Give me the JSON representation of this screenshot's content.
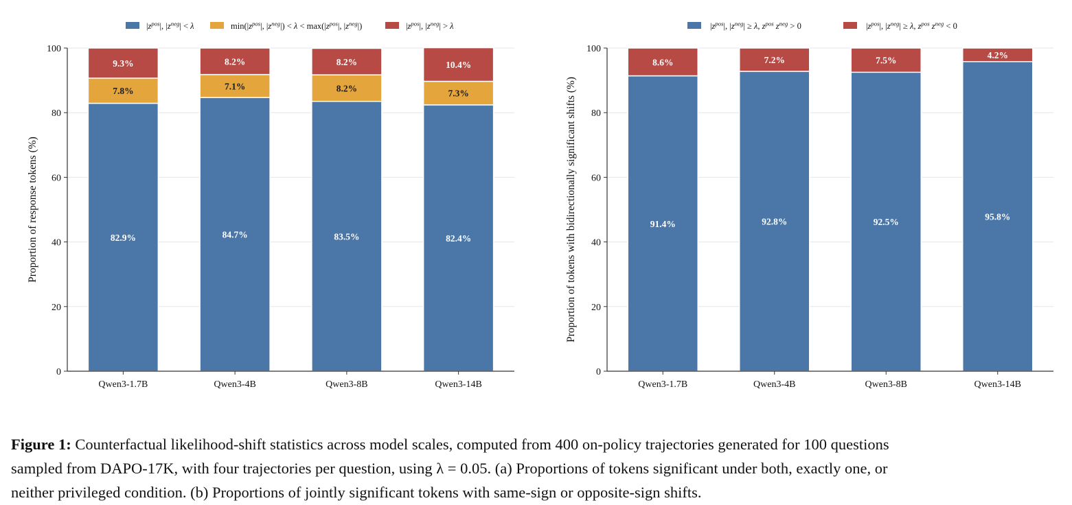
{
  "chart_data": [
    {
      "type": "bar",
      "stacked": true,
      "categories": [
        "Qwen3-1.7B",
        "Qwen3-4B",
        "Qwen3-8B",
        "Qwen3-14B"
      ],
      "series": [
        {
          "name": "|z^pos|, |z^neg| < λ",
          "values": [
            82.9,
            84.7,
            83.5,
            82.4
          ],
          "color": "#4a77a8",
          "label_color": "#ffffff"
        },
        {
          "name": "min(|z^pos|, |z^neg|) < λ < max(|z^pos|, |z^neg|)",
          "values": [
            7.8,
            7.1,
            8.2,
            7.3
          ],
          "color": "#e5a53d",
          "label_color": "#1a1a1a"
        },
        {
          "name": "|z^pos|, |z^neg| > λ",
          "values": [
            9.3,
            8.2,
            8.2,
            10.4
          ],
          "color": "#b84a45",
          "label_color": "#ffffff"
        }
      ],
      "labels": [
        [
          "82.9%",
          "84.7%",
          "83.5%",
          "82.4%"
        ],
        [
          "7.8%",
          "7.1%",
          "8.2%",
          "7.3%"
        ],
        [
          "9.3%",
          "8.2%",
          "8.2%",
          "10.4%"
        ]
      ],
      "ylabel": "Proportion of response tokens (%)",
      "xlabel": "",
      "ylim": [
        0,
        100
      ],
      "yticks": [
        0,
        20,
        40,
        60,
        80,
        100
      ],
      "grid": "horizontal",
      "legend": "top"
    },
    {
      "type": "bar",
      "stacked": true,
      "categories": [
        "Qwen3-1.7B",
        "Qwen3-4B",
        "Qwen3-8B",
        "Qwen3-14B"
      ],
      "series": [
        {
          "name": "|z^pos|, |z^neg| ≥ λ, z^pos z^neg > 0",
          "values": [
            91.4,
            92.8,
            92.5,
            95.8
          ],
          "color": "#4a77a8",
          "label_color": "#ffffff"
        },
        {
          "name": "|z^pos|, |z^neg| ≥ λ, z^pos z^neg < 0",
          "values": [
            8.6,
            7.2,
            7.5,
            4.2
          ],
          "color": "#b84a45",
          "label_color": "#ffffff"
        }
      ],
      "labels": [
        [
          "91.4%",
          "92.8%",
          "92.5%",
          "95.8%"
        ],
        [
          "8.6%",
          "7.2%",
          "7.5%",
          "4.2%"
        ]
      ],
      "ylabel": "Proportion of tokens with bidirectionally significant shifts (%)",
      "xlabel": "",
      "ylim": [
        0,
        100
      ],
      "yticks": [
        0,
        20,
        40,
        60,
        80,
        100
      ],
      "grid": "horizontal",
      "legend": "top"
    }
  ],
  "caption": {
    "label": "Figure 1:",
    "line1": "Counterfactual likelihood-shift statistics across model scales, computed from 400 on-policy trajectories generated for 100 questions",
    "line2": "sampled from DAPO-17K, with four trajectories per question, using λ = 0.05. (a) Proportions of tokens significant under both, exactly one, or",
    "line3": "neither privileged condition. (b) Proportions of jointly significant tokens with same-sign or opposite-sign shifts."
  }
}
